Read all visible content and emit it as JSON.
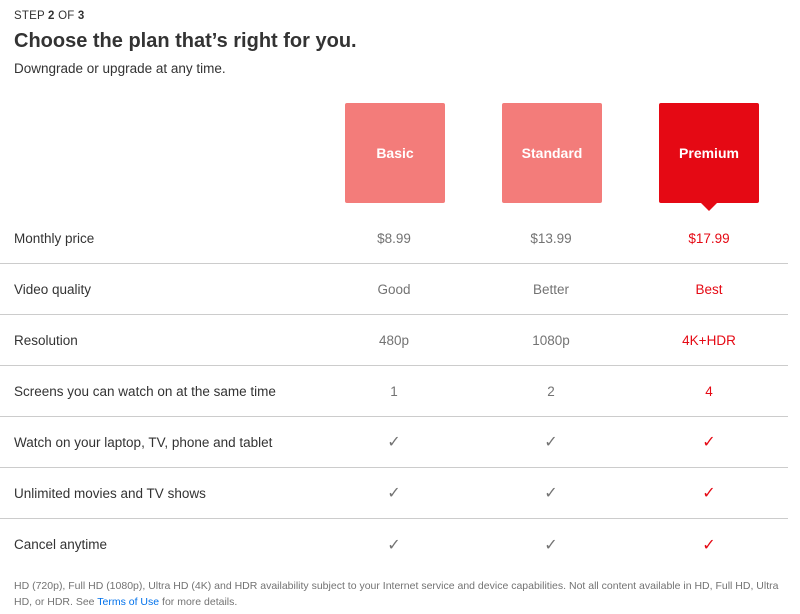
{
  "header": {
    "step_prefix": "STEP",
    "step_current": "2",
    "step_of": "OF",
    "step_total": "3",
    "title": "Choose the plan that’s right for you.",
    "subtitle": "Downgrade or upgrade at any time."
  },
  "plans": [
    {
      "name": "Basic",
      "selected": false
    },
    {
      "name": "Standard",
      "selected": false
    },
    {
      "name": "Premium",
      "selected": true
    }
  ],
  "colors": {
    "accent": "#e50914",
    "unselected_plan": "#f37c7a",
    "link": "#0071eb"
  },
  "rows": [
    {
      "label": "Monthly price",
      "values": [
        "$8.99",
        "$13.99",
        "$17.99"
      ]
    },
    {
      "label": "Video quality",
      "values": [
        "Good",
        "Better",
        "Best"
      ]
    },
    {
      "label": "Resolution",
      "values": [
        "480p",
        "1080p",
        "4K+HDR"
      ]
    },
    {
      "label": "Screens you can watch on at the same time",
      "values": [
        "1",
        "2",
        "4"
      ]
    },
    {
      "label": "Watch on your laptop, TV, phone and tablet",
      "values": [
        "✓",
        "✓",
        "✓"
      ]
    },
    {
      "label": "Unlimited movies and TV shows",
      "values": [
        "✓",
        "✓",
        "✓"
      ]
    },
    {
      "label": "Cancel anytime",
      "values": [
        "✓",
        "✓",
        "✓"
      ]
    }
  ],
  "footer": {
    "text": "HD (720p), Full HD (1080p), Ultra HD (4K) and HDR availability subject to your Internet service and device capabilities. Not all content available in HD, Full HD, Ultra HD, or HDR. See ",
    "link": "Terms of Use",
    "after": " for more details."
  }
}
